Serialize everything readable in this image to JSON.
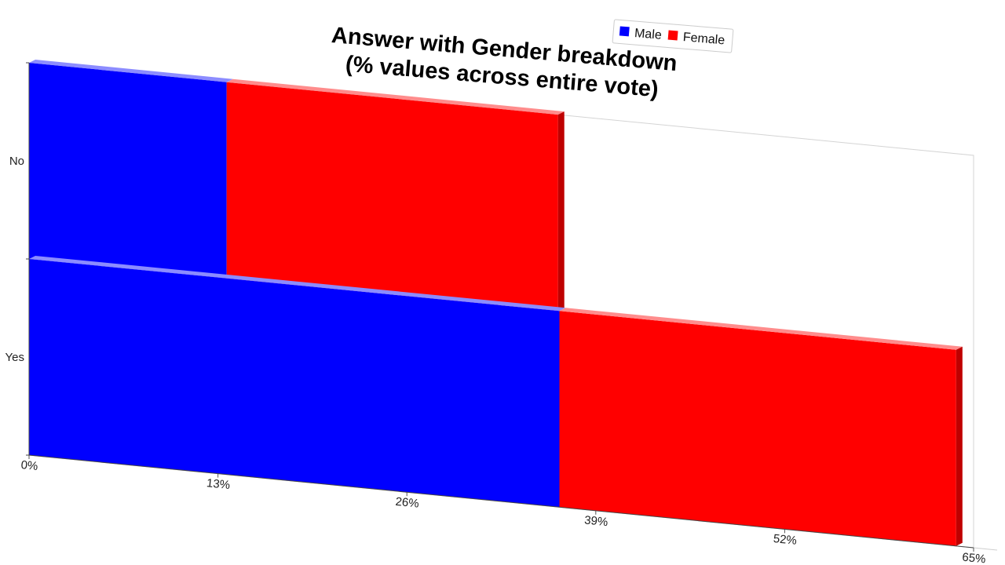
{
  "chart_data": {
    "type": "bar",
    "orientation": "horizontal",
    "stacked": true,
    "three_d": true,
    "title": [
      "Answer with Gender breakdown",
      "(% values across entire vote)"
    ],
    "categories": [
      "No",
      "Yes"
    ],
    "series": [
      {
        "name": "Male",
        "color": "#0000ff",
        "values": [
          13.6,
          36.5
        ]
      },
      {
        "name": "Female",
        "color": "#ff0000",
        "values": [
          22.8,
          27.3
        ]
      }
    ],
    "x_ticks": [
      "0%",
      "13%",
      "26%",
      "39%",
      "52%",
      "65%"
    ],
    "xlim": [
      0,
      65
    ],
    "legend_position": "top-right"
  }
}
